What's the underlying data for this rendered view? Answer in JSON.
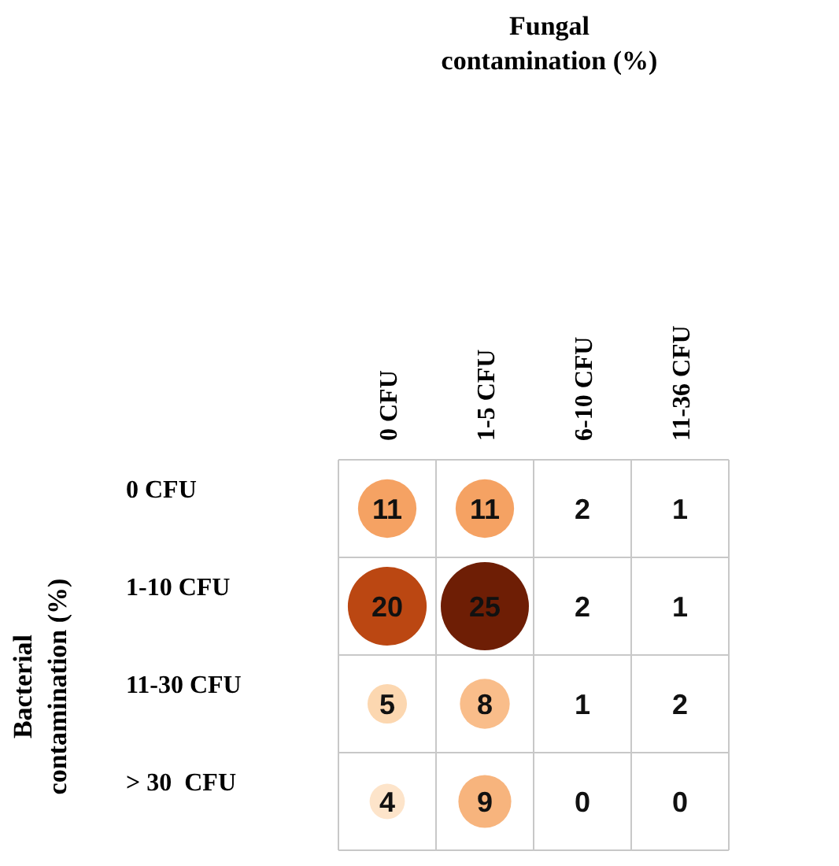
{
  "chart_data": {
    "type": "heatmap",
    "data_labels": true,
    "title": "Fungal contamination (%)",
    "ylabel": "Bacterial contamination (%)",
    "categories": [
      "0 CFU",
      "1-5 CFU",
      "6-10 CFU",
      "11-36 CFU"
    ],
    "y_categories": [
      "0 CFU",
      "1-10 CFU",
      "11-30 CFU",
      "> 30  CFU"
    ],
    "cells": [
      [
        11,
        11,
        2,
        1
      ],
      [
        20,
        25,
        2,
        1
      ],
      [
        5,
        8,
        1,
        2
      ],
      [
        4,
        9,
        0,
        0
      ]
    ]
  }
}
